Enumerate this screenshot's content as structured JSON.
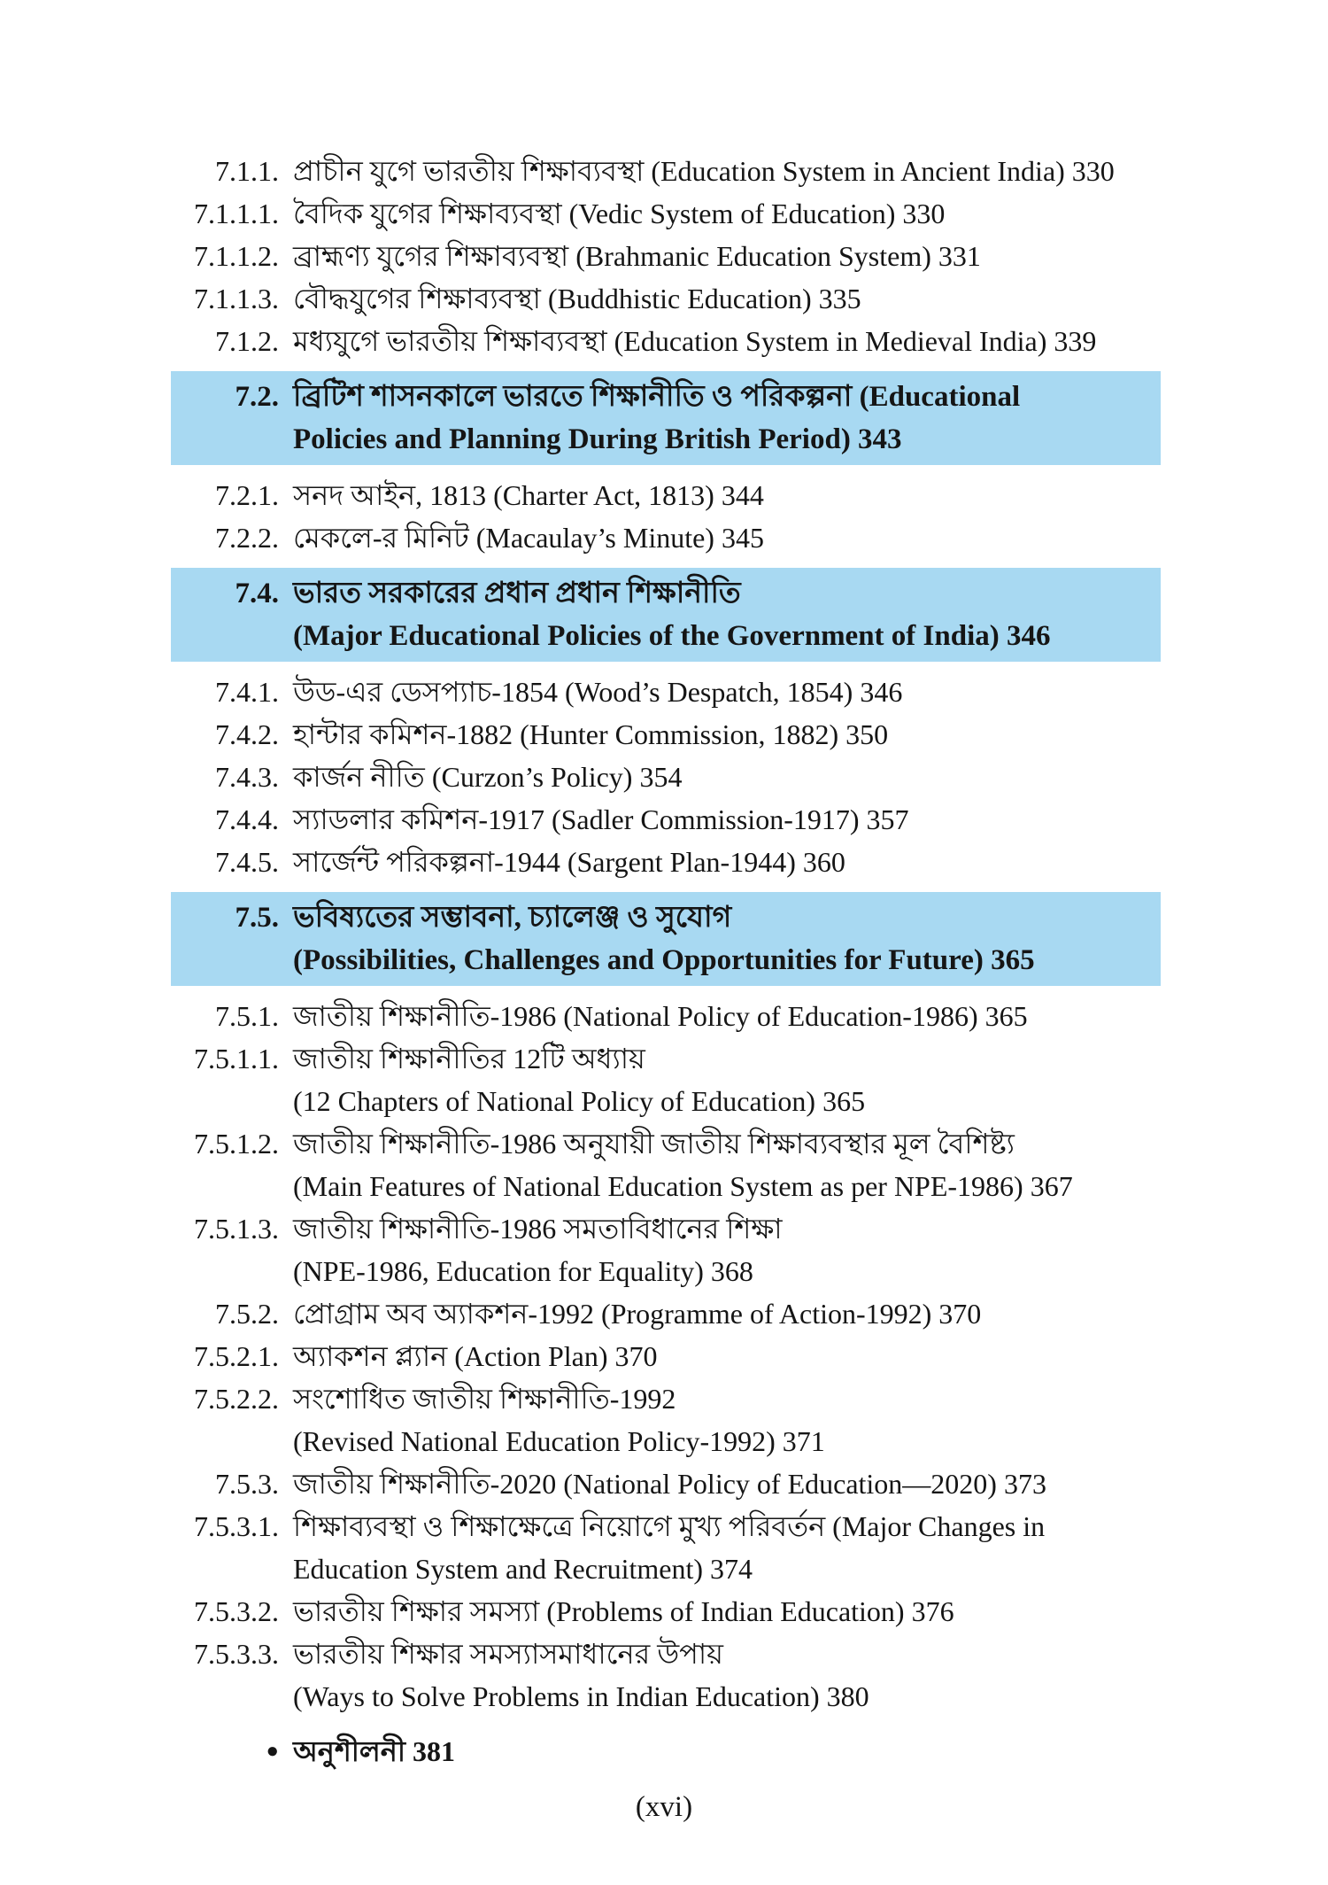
{
  "page": {
    "background": "#ffffff",
    "highlight_color": "#a8d9f2",
    "text_color": "#151515",
    "bullet_glyph": "●",
    "footer": "(xvi)"
  },
  "toc": {
    "rows": [
      {
        "type": "entry",
        "num": "7.1.1.",
        "lines": [
          "প্রাচীন যুগে ভারতীয় শিক্ষাব্যবস্থা (Education System in Ancient India) 330"
        ]
      },
      {
        "type": "entry",
        "num": "7.1.1.1.",
        "lines": [
          "বৈদিক যুগের শিক্ষাব্যবস্থা (Vedic System of Education) 330"
        ]
      },
      {
        "type": "entry",
        "num": "7.1.1.2.",
        "lines": [
          "ব্রাহ্মণ্য যুগের শিক্ষাব্যবস্থা (Brahmanic Education System) 331"
        ]
      },
      {
        "type": "entry",
        "num": "7.1.1.3.",
        "lines": [
          "বৌদ্ধযুগের শিক্ষাব্যবস্থা (Buddhistic Education) 335"
        ]
      },
      {
        "type": "entry",
        "num": "7.1.2.",
        "lines": [
          "মধ্যযুগে ভারতীয় শিক্ষাব্যবস্থা (Education System in Medieval India) 339"
        ]
      },
      {
        "type": "header",
        "num": "7.2.",
        "lines": [
          "ব্রিটিশ শাসনকালে ভারতে শিক্ষানীতি ও পরিকল্পনা (Educational",
          "Policies and Planning During British Period) 343"
        ]
      },
      {
        "type": "entry",
        "num": "7.2.1.",
        "lines": [
          "সনদ আইন, 1813 (Charter Act, 1813) 344"
        ]
      },
      {
        "type": "entry",
        "num": "7.2.2.",
        "lines": [
          "মেকলে-র মিনিট (Macaulay’s Minute) 345"
        ]
      },
      {
        "type": "header",
        "num": "7.4.",
        "lines": [
          "ভারত সরকারের প্রধান প্রধান শিক্ষানীতি",
          "(Major Educational Policies of the Government of India) 346"
        ]
      },
      {
        "type": "entry",
        "num": "7.4.1.",
        "lines": [
          "উড-এর ডেসপ্যাচ-1854 (Wood’s Despatch, 1854) 346"
        ]
      },
      {
        "type": "entry",
        "num": "7.4.2.",
        "lines": [
          "হান্টার কমিশন-1882 (Hunter Commission, 1882) 350"
        ]
      },
      {
        "type": "entry",
        "num": "7.4.3.",
        "lines": [
          "কার্জন নীতি (Curzon’s Policy) 354"
        ]
      },
      {
        "type": "entry",
        "num": "7.4.4.",
        "lines": [
          "স্যাডলার কমিশন-1917 (Sadler Commission-1917) 357"
        ]
      },
      {
        "type": "entry",
        "num": "7.4.5.",
        "lines": [
          "সার্জেন্ট পরিকল্পনা-1944 (Sargent Plan-1944) 360"
        ]
      },
      {
        "type": "header",
        "num": "7.5.",
        "lines": [
          "ভবিষ্যতের সম্ভাবনা, চ্যালেঞ্জ ও সুযোগ",
          "(Possibilities, Challenges and Opportunities for Future) 365"
        ]
      },
      {
        "type": "entry",
        "num": "7.5.1.",
        "lines": [
          "জাতীয় শিক্ষানীতি-1986 (National Policy of Education-1986) 365"
        ]
      },
      {
        "type": "entry",
        "num": "7.5.1.1.",
        "lines": [
          "জাতীয় শিক্ষানীতির 12টি অধ্যায়",
          "(12 Chapters of National Policy of Education) 365"
        ]
      },
      {
        "type": "entry",
        "num": "7.5.1.2.",
        "lines": [
          "জাতীয় শিক্ষানীতি-1986 অনুযায়ী জাতীয় শিক্ষাব্যবস্থার মূল বৈশিষ্ট্য",
          "(Main Features of National Education System as per NPE-1986) 367"
        ]
      },
      {
        "type": "entry",
        "num": "7.5.1.3.",
        "lines": [
          "জাতীয় শিক্ষানীতি-1986 সমতাবিধানের শিক্ষা",
          "(NPE-1986, Education for Equality) 368"
        ]
      },
      {
        "type": "entry",
        "num": "7.5.2.",
        "lines": [
          "প্রোগ্রাম অব অ্যাকশন-1992 (Programme of Action-1992) 370"
        ]
      },
      {
        "type": "entry",
        "num": "7.5.2.1.",
        "lines": [
          "অ্যাকশন প্ল্যান (Action Plan) 370"
        ]
      },
      {
        "type": "entry",
        "num": "7.5.2.2.",
        "lines": [
          "সংশোধিত জাতীয় শিক্ষানীতি-1992",
          "(Revised National Education Policy-1992) 371"
        ]
      },
      {
        "type": "entry",
        "num": "7.5.3.",
        "lines": [
          "জাতীয় শিক্ষানীতি-2020 (National Policy of Education—2020) 373"
        ]
      },
      {
        "type": "entry",
        "num": "7.5.3.1.",
        "lines": [
          "শিক্ষাব্যবস্থা ও শিক্ষাক্ষেত্রে নিয়োগে মুখ্য পরিবর্তন (Major Changes in",
          "Education System and Recruitment) 374"
        ]
      },
      {
        "type": "entry",
        "num": "7.5.3.2.",
        "lines": [
          "ভারতীয় শিক্ষার সমস্যা (Problems of Indian Education) 376"
        ]
      },
      {
        "type": "entry",
        "num": "7.5.3.3.",
        "lines": [
          "ভারতীয় শিক্ষার সমস্যাসমাধানের উপায়",
          "(Ways to Solve Problems in Indian Education) 380"
        ]
      },
      {
        "type": "bullet",
        "num": "",
        "lines": [
          "অনুশীলনী 381"
        ]
      }
    ]
  }
}
